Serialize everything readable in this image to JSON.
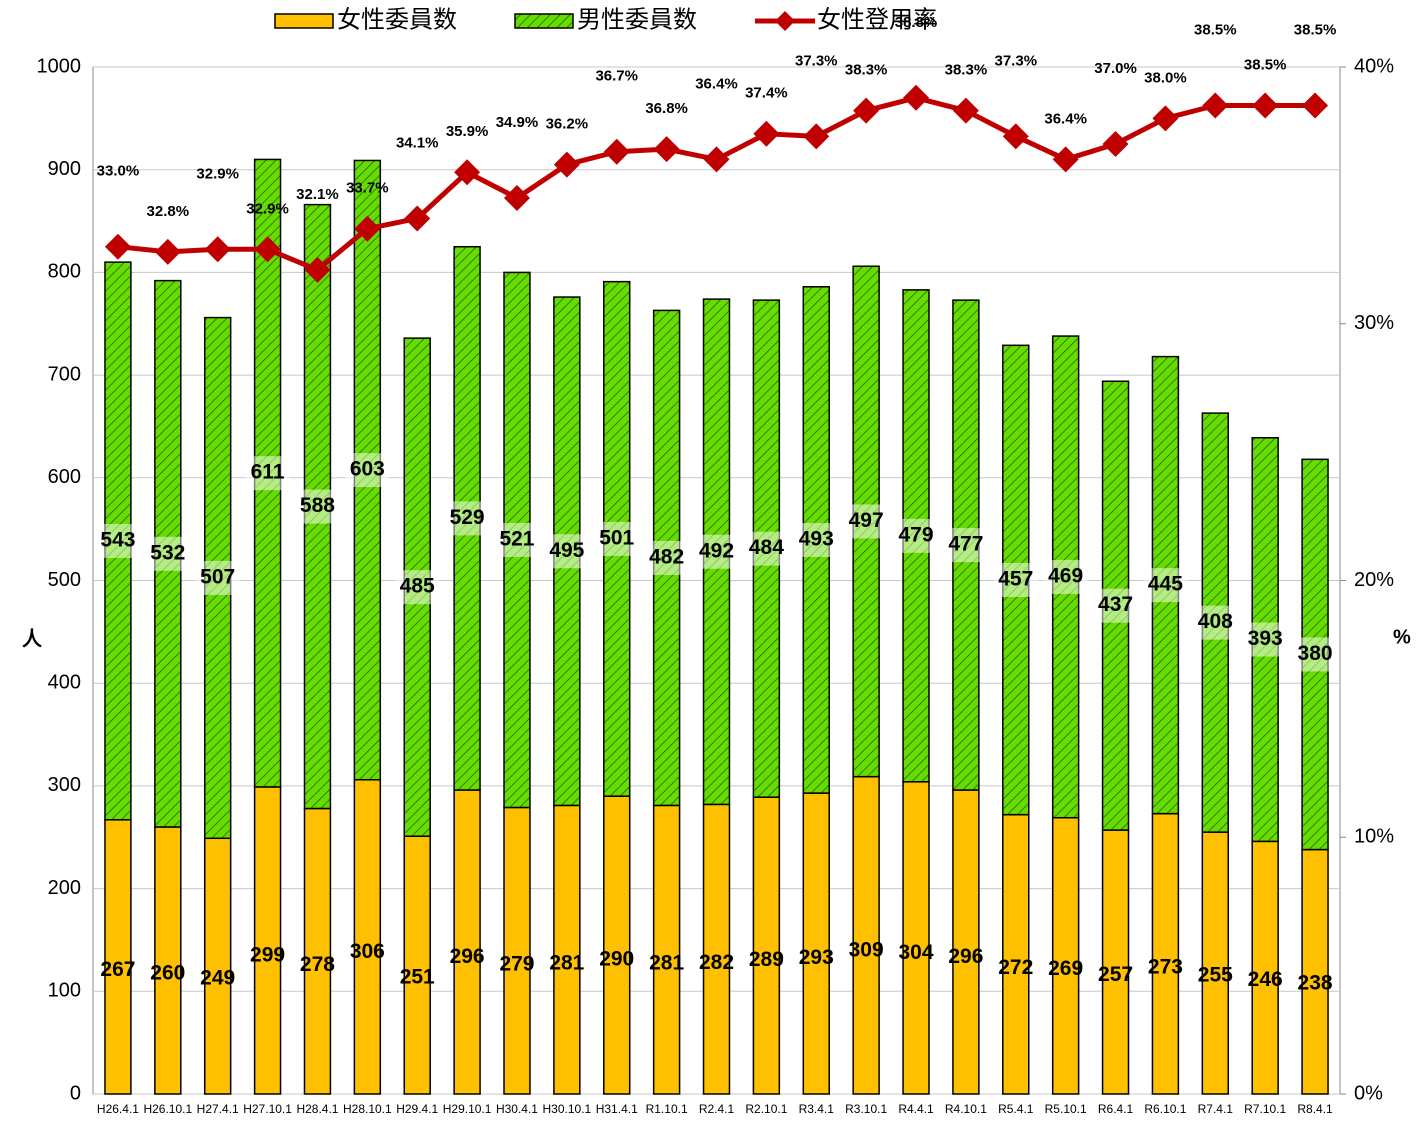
{
  "chart_data": {
    "type": "bar_line",
    "categories": [
      "H26.4.1",
      "H26.10.1",
      "H27.4.1",
      "H27.10.1",
      "H28.4.1",
      "H28.10.1",
      "H29.4.1",
      "H29.10.1",
      "H30.4.1",
      "H30.10.1",
      "H31.4.1",
      "R1.10.1",
      "R2.4.1",
      "R2.10.1",
      "R3.4.1",
      "R3.10.1",
      "R4.4.1",
      "R4.10.1",
      "R5.4.1",
      "R5.10.1",
      "R6.4.1",
      "R6.10.1",
      "R7.4.1",
      "R7.10.1",
      "R8.4.1"
    ],
    "series": [
      {
        "name": "女性委員数",
        "color": "#ffc000",
        "values": [
          267,
          260,
          249,
          299,
          278,
          306,
          251,
          296,
          279,
          281,
          290,
          281,
          282,
          289,
          293,
          309,
          304,
          296,
          272,
          269,
          257,
          273,
          255,
          246,
          238
        ]
      },
      {
        "name": "男性委員数",
        "color": "#66dd00",
        "values": [
          543,
          532,
          507,
          611,
          588,
          603,
          485,
          529,
          521,
          495,
          501,
          482,
          492,
          484,
          493,
          497,
          479,
          477,
          457,
          469,
          437,
          445,
          408,
          393,
          380
        ]
      },
      {
        "name": "女性登用率",
        "color": "#c00000",
        "axis": "y2",
        "values": [
          33.0,
          32.8,
          32.9,
          32.9,
          32.1,
          33.7,
          34.1,
          35.9,
          34.9,
          36.2,
          36.7,
          36.8,
          36.4,
          37.4,
          37.3,
          38.3,
          38.8,
          38.3,
          37.3,
          36.4,
          37.0,
          38.0,
          38.5,
          38.5,
          38.5
        ],
        "value_labels": [
          "33.0%",
          "32.8%",
          "32.9%",
          "32.9%",
          "32.1%",
          "33.7%",
          "34.1%",
          "35.9%",
          "34.9%",
          "36.2%",
          "36.7%",
          "36.8%",
          "36.4%",
          "37.4%",
          "37.3%",
          "38.3%",
          "38.8%",
          "38.3%",
          "37.3%",
          "36.4%",
          "37.0%",
          "38.0%",
          "38.5%",
          "38.5%",
          "38.5%"
        ]
      }
    ],
    "ylabel": "人",
    "y2label": "%",
    "ylim": [
      0,
      1000
    ],
    "yticks": [
      0,
      100,
      200,
      300,
      400,
      500,
      600,
      700,
      800,
      900,
      1000
    ],
    "y2lim": [
      0,
      40
    ],
    "y2ticks": [
      {
        "value": 0,
        "label": "0%"
      },
      {
        "value": 10,
        "label": "10%"
      },
      {
        "value": 20,
        "label": "20%"
      },
      {
        "value": 30,
        "label": "30%"
      },
      {
        "value": 40,
        "label": "40%"
      }
    ],
    "grid": true
  }
}
